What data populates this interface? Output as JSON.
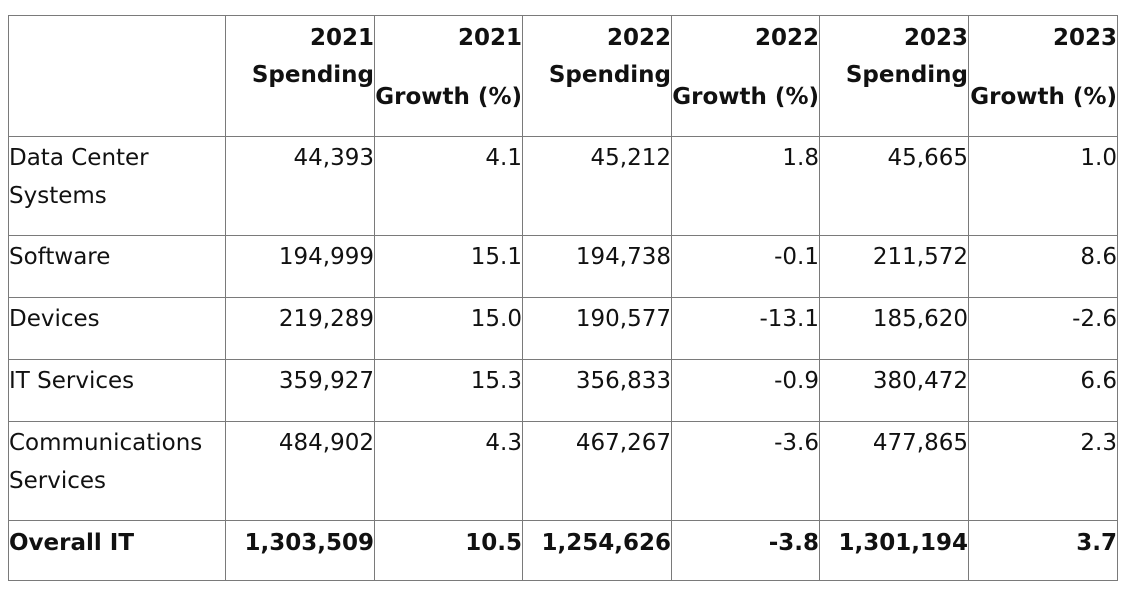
{
  "table": {
    "headers": [
      {
        "line1": "",
        "line2": "",
        "kind": "blank"
      },
      {
        "line1": "2021",
        "line2": "Spending",
        "kind": "spend"
      },
      {
        "line1": "2021",
        "line2": "Growth (%)",
        "kind": "growth"
      },
      {
        "line1": "2022",
        "line2": "Spending",
        "kind": "spend"
      },
      {
        "line1": "2022",
        "line2": "Growth (%)",
        "kind": "growth"
      },
      {
        "line1": "2023",
        "line2": "Spending",
        "kind": "spend"
      },
      {
        "line1": "2023",
        "line2": "Growth (%)",
        "kind": "growth"
      }
    ],
    "rows": [
      {
        "label_line1": "Data Center",
        "label_line2": "Systems",
        "values": [
          "44,393",
          "4.1",
          "45,212",
          "1.8",
          "45,665",
          "1.0"
        ],
        "size": "tall",
        "bold": false
      },
      {
        "label_line1": "Software",
        "label_line2": "",
        "values": [
          "194,999",
          "15.1",
          "194,738",
          "-0.1",
          "211,572",
          "8.6"
        ],
        "size": "short",
        "bold": false
      },
      {
        "label_line1": "Devices",
        "label_line2": "",
        "values": [
          "219,289",
          "15.0",
          "190,577",
          "-13.1",
          "185,620",
          "-2.6"
        ],
        "size": "short",
        "bold": false
      },
      {
        "label_line1": "IT Services",
        "label_line2": "",
        "values": [
          "359,927",
          "15.3",
          "356,833",
          "-0.9",
          "380,472",
          "6.6"
        ],
        "size": "short",
        "bold": false
      },
      {
        "label_line1": "Communications",
        "label_line2": "Services",
        "values": [
          "484,902",
          "4.3",
          "467,267",
          "-3.6",
          "477,865",
          "2.3"
        ],
        "size": "tall",
        "bold": false
      },
      {
        "label_line1": "Overall IT",
        "label_line2": "",
        "values": [
          "1,303,509",
          "10.5",
          "1,254,626",
          "-3.8",
          "1,301,194",
          "3.7"
        ],
        "size": "total",
        "bold": true
      }
    ]
  }
}
